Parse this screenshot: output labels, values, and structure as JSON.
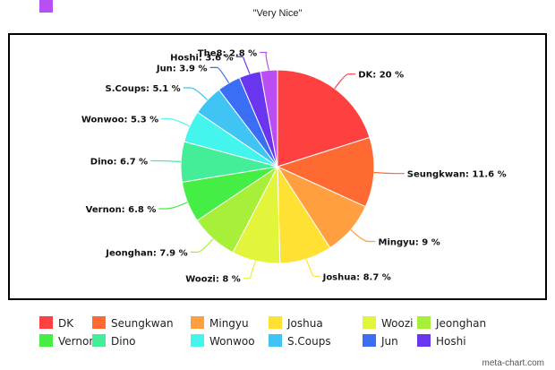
{
  "chart_data": {
    "type": "pie",
    "title": "\"Very Nice\"",
    "slices": [
      {
        "name": "DK",
        "value": 20,
        "label": "DK: 20 %",
        "color": "#ff4040"
      },
      {
        "name": "Seungkwan",
        "value": 11.6,
        "label": "Seungkwan: 11.6 %",
        "color": "#ff6a33"
      },
      {
        "name": "Mingyu",
        "value": 9,
        "label": "Mingyu: 9 %",
        "color": "#ff9f40"
      },
      {
        "name": "Joshua",
        "value": 8.7,
        "label": "Joshua: 8.7 %",
        "color": "#ffe133"
      },
      {
        "name": "Woozi",
        "value": 8,
        "label": "Woozi: 8 %",
        "color": "#e2f53a"
      },
      {
        "name": "Jeonghan",
        "value": 7.9,
        "label": "Jeonghan: 7.9 %",
        "color": "#a8ef3a"
      },
      {
        "name": "Vernon",
        "value": 6.8,
        "label": "Vernon: 6.8 %",
        "color": "#44ee44"
      },
      {
        "name": "Dino",
        "value": 6.7,
        "label": "Dino: 6.7 %",
        "color": "#44ee99"
      },
      {
        "name": "Wonwoo",
        "value": 5.3,
        "label": "Wonwoo: 5.3 %",
        "color": "#44f5ee"
      },
      {
        "name": "S.Coups",
        "value": 5.1,
        "label": "S.Coups: 5.1 %",
        "color": "#3fc4f4"
      },
      {
        "name": "Jun",
        "value": 3.9,
        "label": "Jun: 3.9 %",
        "color": "#3a6ff5"
      },
      {
        "name": "Hoshi",
        "value": 3.6,
        "label": "Hoshi: 3.6 %",
        "color": "#6a35ee"
      },
      {
        "name": "The8",
        "value": 2.8,
        "label": "The8: 2.8 %",
        "color": "#b94ef5"
      }
    ],
    "legend_placement": "bottom"
  },
  "credit": "meta-chart.com"
}
